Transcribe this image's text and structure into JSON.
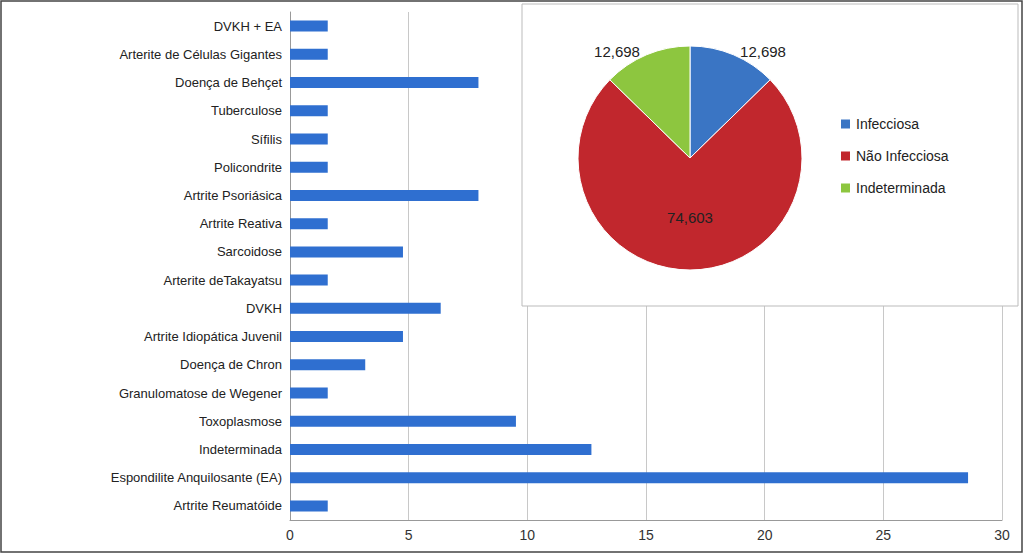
{
  "chart_data": [
    {
      "type": "bar",
      "orientation": "horizontal",
      "categories": [
        "DVKH + EA",
        "Arterite de Células Gigantes",
        "Doença de Behçet",
        "Tuberculose",
        "Sífilis",
        "Policondrite",
        "Artrite Psoriásica",
        "Artrite Reativa",
        "Sarcoidose",
        "Arterite deTakayatsu",
        "DVKH",
        "Artrite Idiopática Juvenil",
        "Doença de Chron",
        "Granulomatose de Wegener",
        "Toxoplasmose",
        "Indeterminada",
        "Espondilite Anquilosante (EA)",
        "Artrite Reumatóide"
      ],
      "values": [
        1.59,
        1.59,
        7.94,
        1.59,
        1.59,
        1.59,
        7.94,
        1.59,
        4.76,
        1.59,
        6.35,
        4.76,
        3.17,
        1.59,
        9.52,
        12.7,
        28.57,
        1.59
      ],
      "color": "#2f6fd0",
      "xlim": [
        0,
        30
      ],
      "xticks": [
        0,
        5,
        10,
        15,
        20,
        25,
        30
      ],
      "grid": true
    },
    {
      "type": "pie",
      "categories": [
        "Infecciosa",
        "Não Infecciosa",
        "Indeterminada"
      ],
      "values": [
        12.698,
        74.603,
        12.698
      ],
      "value_labels": [
        "12,698",
        "74,603",
        "12,698"
      ],
      "colors": [
        "#3a75c4",
        "#c1272d",
        "#8dc63f"
      ],
      "data_labels": true,
      "legend": "right"
    }
  ]
}
